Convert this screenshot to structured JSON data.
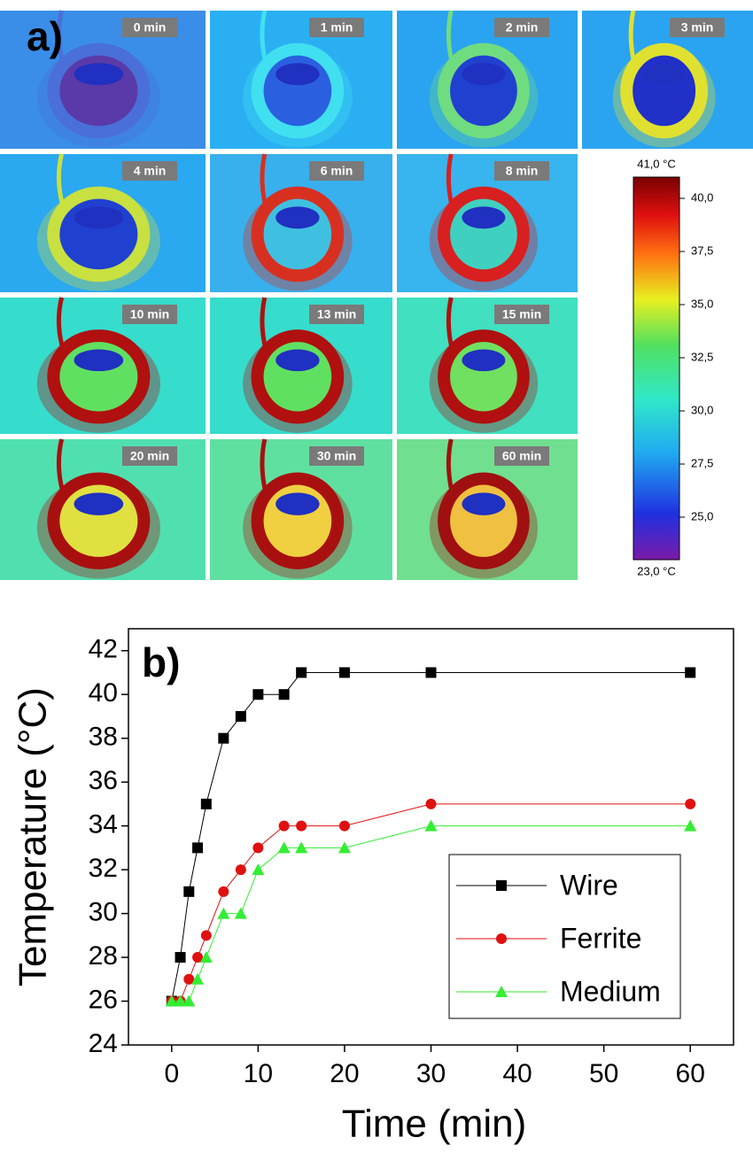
{
  "panel_a": {
    "label": "a)",
    "frames": [
      "0 min",
      "1 min",
      "2 min",
      "3 min",
      "4 min",
      "6 min",
      "8 min",
      "10 min",
      "13 min",
      "15 min",
      "20 min",
      "30 min",
      "60 min"
    ],
    "colorbar": {
      "max_label": "41,0 °C",
      "min_label": "23,0 °C",
      "lim": [
        23,
        41
      ],
      "ticks": [
        {
          "value": 25,
          "label": "25,0"
        },
        {
          "value": 27.5,
          "label": "27,5"
        },
        {
          "value": 30,
          "label": "30,0"
        },
        {
          "value": 32.5,
          "label": "32,5"
        },
        {
          "value": 35,
          "label": "35,0"
        },
        {
          "value": 37.5,
          "label": "37,5"
        },
        {
          "value": 40,
          "label": "40,0"
        }
      ]
    }
  },
  "chart_data": {
    "type": "line",
    "label": "b)",
    "x_label": "Time (min)",
    "y_label": "Temperature (°C)",
    "x": [
      0,
      1,
      2,
      3,
      4,
      6,
      8,
      10,
      13,
      15,
      20,
      30,
      60
    ],
    "series": [
      {
        "name": "Wire",
        "color": "#000000",
        "marker": "square",
        "values": [
          26,
          28,
          31,
          33,
          35,
          38,
          39,
          40,
          40,
          41,
          41,
          41,
          41
        ]
      },
      {
        "name": "Ferrite",
        "color": "#e01010",
        "marker": "circle",
        "values": [
          26,
          26,
          27,
          28,
          29,
          31,
          32,
          33,
          34,
          34,
          34,
          35,
          35
        ]
      },
      {
        "name": "Medium",
        "color": "#33ee33",
        "marker": "triangle",
        "values": [
          26,
          26,
          26,
          27,
          28,
          30,
          30,
          32,
          33,
          33,
          33,
          34,
          34
        ]
      }
    ],
    "xlim": [
      -5,
      65
    ],
    "xticks": [
      0,
      10,
      20,
      30,
      40,
      50,
      60
    ],
    "ylim": [
      24,
      43
    ],
    "yticks": [
      24,
      26,
      28,
      30,
      32,
      34,
      36,
      38,
      40,
      42
    ],
    "legend": "lower right"
  }
}
